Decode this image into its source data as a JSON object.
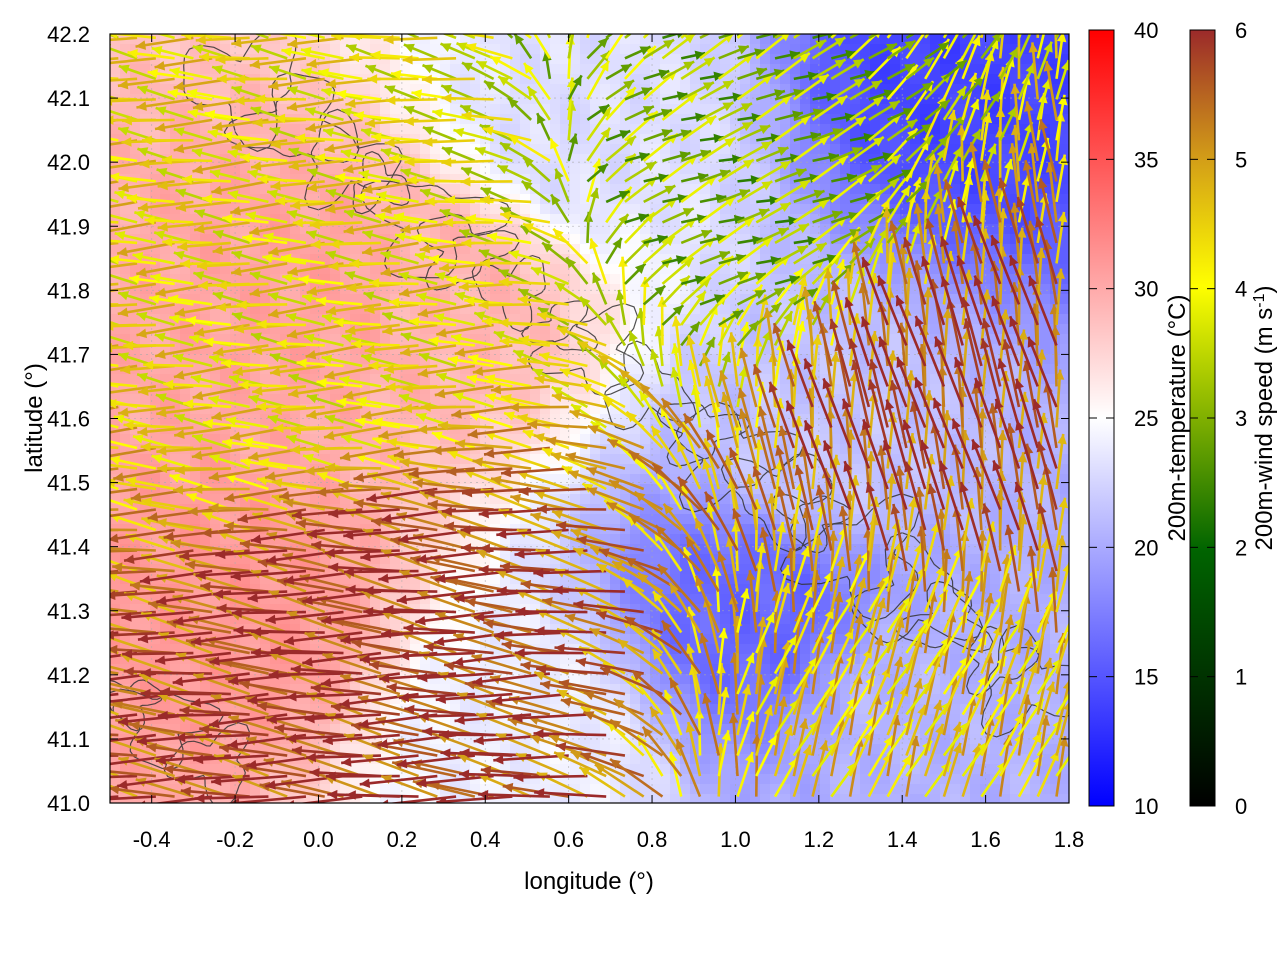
{
  "chart_data": {
    "type": "heatmap",
    "title": "",
    "xlabel": "longitude (°)",
    "ylabel": "latitude (°)",
    "xlim": [
      -0.5,
      1.8
    ],
    "ylim": [
      41.0,
      42.2
    ],
    "x_ticks": [
      "-0.4",
      "-0.2",
      "0.0",
      "0.2",
      "0.4",
      "0.6",
      "0.8",
      "1.0",
      "1.2",
      "1.4",
      "1.6",
      "1.8"
    ],
    "y_ticks": [
      "41.0",
      "41.1",
      "41.2",
      "41.3",
      "41.4",
      "41.5",
      "41.6",
      "41.7",
      "41.8",
      "41.9",
      "42.0",
      "42.1",
      "42.2"
    ],
    "grid": true,
    "temperature": {
      "colorbar_label": "200m-temperature (°C)",
      "range": [
        10,
        40
      ],
      "ticks": [
        "10",
        "15",
        "20",
        "25",
        "30",
        "35",
        "40"
      ],
      "colors": [
        "#0000ff",
        "#ffffff",
        "#ff0000"
      ],
      "fields": [
        {
          "lon": -0.2,
          "lat": 41.3,
          "value": 31.0
        },
        {
          "lon": 0.3,
          "lat": 41.8,
          "value": 29.5
        },
        {
          "lon": 0.0,
          "lat": 41.8,
          "value": 30.5
        },
        {
          "lon": 1.05,
          "lat": 41.3,
          "value": 16.0
        },
        {
          "lon": 1.4,
          "lat": 41.15,
          "value": 20.5
        },
        {
          "lon": 1.6,
          "lat": 42.15,
          "value": 14.0
        },
        {
          "lon": 0.6,
          "lat": 42.05,
          "value": 23.0
        },
        {
          "lon": 1.2,
          "lat": 41.55,
          "value": 21.5
        },
        {
          "lon": 0.5,
          "lat": 41.1,
          "value": 24.0
        }
      ]
    },
    "wind": {
      "colorbar_label": "200m-wind speed (m s-1)",
      "range": [
        0,
        6
      ],
      "ticks": [
        "0",
        "1",
        "2",
        "3",
        "4",
        "5",
        "6"
      ],
      "colors": [
        "#000000",
        "#006400",
        "#80b000",
        "#ffff00",
        "#d4a017",
        "#9b2a2a"
      ],
      "regimes": [
        {
          "region": "southwest",
          "lon": [
            -0.5,
            0.9
          ],
          "lat": [
            41.0,
            41.55
          ],
          "u": -5.2,
          "v": 0.6,
          "speed": 5.8
        },
        {
          "region": "west",
          "lon": [
            -0.5,
            0.6
          ],
          "lat": [
            41.55,
            41.85
          ],
          "u": -3.6,
          "v": 0.2,
          "speed": 3.8
        },
        {
          "region": "north",
          "lon": [
            0.3,
            1.8
          ],
          "lat": [
            41.7,
            42.2
          ],
          "u": 0.8,
          "v": 0.3,
          "speed": 2.5
        },
        {
          "region": "east",
          "lon": [
            1.2,
            1.8
          ],
          "lat": [
            41.3,
            41.9
          ],
          "u": -0.4,
          "v": 2.8,
          "speed": 5.5
        },
        {
          "region": "southeast",
          "lon": [
            1.0,
            1.8
          ],
          "lat": [
            41.0,
            41.25
          ],
          "u": 0.6,
          "v": 1.4,
          "speed": 4.2
        }
      ]
    }
  }
}
